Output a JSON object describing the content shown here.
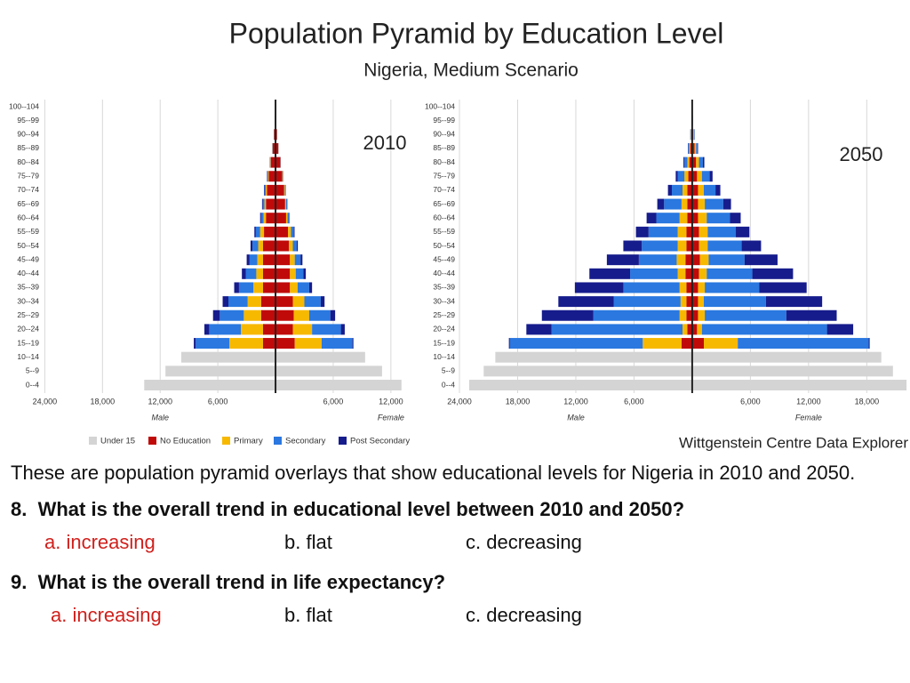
{
  "header": {
    "title": "Population Pyramid by Education Level",
    "subtitle": "Nigeria, Medium Scenario"
  },
  "source": "Wittgenstein Centre Data Explorer",
  "chart_data": [
    {
      "type": "pyramid",
      "label": "2010",
      "categories": [
        "0--4",
        "5--9",
        "10--14",
        "15--19",
        "20--24",
        "25--29",
        "30--34",
        "35--39",
        "40--44",
        "45--49",
        "50--54",
        "55--59",
        "60--64",
        "65--69",
        "70--74",
        "75--79",
        "80--84",
        "85--89",
        "90--94",
        "95--99",
        "100--104"
      ],
      "xlim": [
        -24500,
        13400
      ],
      "xticks": [
        {
          "value": -24000,
          "label": "24,000"
        },
        {
          "value": -18000,
          "label": "18,000"
        },
        {
          "value": -12000,
          "label": "12,000"
        },
        {
          "value": -6000,
          "label": "6,000"
        },
        {
          "value": 6000,
          "label": "6,000"
        },
        {
          "value": 12000,
          "label": "12,000"
        }
      ],
      "grid": true,
      "male_label": "Male",
      "female_label": "Female",
      "series": [
        {
          "name": "Under 15",
          "color": "#d4d4d4",
          "male": [
            13660,
            11450,
            9800,
            0,
            0,
            0,
            0,
            0,
            0,
            0,
            0,
            0,
            0,
            0,
            0,
            0,
            0,
            0,
            0,
            0,
            0
          ],
          "female": [
            13100,
            11080,
            9320,
            0,
            0,
            0,
            0,
            0,
            0,
            0,
            0,
            0,
            0,
            0,
            0,
            0,
            0,
            0,
            0,
            0,
            0
          ]
        },
        {
          "name": "No Education",
          "color": "#c00a0a",
          "male": [
            0,
            0,
            0,
            1300,
            1300,
            1500,
            1500,
            1300,
            1300,
            1300,
            1300,
            1200,
            1000,
            1000,
            900,
            700,
            500,
            300,
            160,
            70,
            20
          ],
          "female": [
            0,
            0,
            0,
            2000,
            1800,
            1900,
            1800,
            1500,
            1500,
            1500,
            1400,
            1300,
            1100,
            1000,
            900,
            700,
            500,
            300,
            150,
            70,
            20
          ]
        },
        {
          "name": "Primary",
          "color": "#f7b800",
          "male": [
            0,
            0,
            0,
            3500,
            2300,
            1800,
            1400,
            1000,
            700,
            600,
            500,
            400,
            250,
            150,
            120,
            80,
            40,
            20,
            10,
            5,
            0
          ],
          "female": [
            0,
            0,
            0,
            2800,
            2000,
            1600,
            1200,
            800,
            600,
            500,
            400,
            300,
            150,
            100,
            80,
            40,
            20,
            10,
            5,
            0,
            0
          ]
        },
        {
          "name": "Secondary",
          "color": "#2a78e0",
          "male": [
            0,
            0,
            0,
            3500,
            3300,
            2500,
            2000,
            1500,
            1100,
            800,
            600,
            450,
            250,
            180,
            130,
            90,
            40,
            20,
            10,
            5,
            0
          ],
          "female": [
            0,
            0,
            0,
            3200,
            3000,
            2200,
            1700,
            1200,
            800,
            600,
            400,
            300,
            150,
            100,
            70,
            40,
            20,
            10,
            5,
            0,
            0
          ]
        },
        {
          "name": "Post Secondary",
          "color": "#161c8c",
          "male": [
            0,
            0,
            0,
            200,
            500,
            700,
            600,
            500,
            400,
            300,
            200,
            150,
            100,
            70,
            50,
            30,
            20,
            10,
            0,
            0,
            0
          ],
          "female": [
            0,
            0,
            0,
            100,
            400,
            500,
            400,
            300,
            250,
            200,
            120,
            80,
            50,
            30,
            20,
            10,
            10,
            0,
            0,
            0,
            0
          ]
        }
      ]
    },
    {
      "type": "pyramid",
      "label": "2050",
      "categories": [
        "0--4",
        "5--9",
        "10--14",
        "15--19",
        "20--24",
        "25--29",
        "30--34",
        "35--39",
        "40--44",
        "45--49",
        "50--54",
        "55--59",
        "60--64",
        "65--69",
        "70--74",
        "75--79",
        "80--84",
        "85--89",
        "90--94",
        "95--99",
        "100--104"
      ],
      "xlim": [
        -24000,
        22000
      ],
      "xticks": [
        {
          "value": -24000,
          "label": "24,000"
        },
        {
          "value": -18000,
          "label": "18,000"
        },
        {
          "value": -12000,
          "label": "12,000"
        },
        {
          "value": -6000,
          "label": "6,000"
        },
        {
          "value": 6000,
          "label": "6,000"
        },
        {
          "value": 12000,
          "label": "12,000"
        },
        {
          "value": 18000,
          "label": "18,000"
        }
      ],
      "grid": true,
      "male_label": "Male",
      "female_label": "Female",
      "series": [
        {
          "color": "#d4d4d4",
          "male": [
            23000,
            21500,
            20300,
            0,
            0,
            0,
            0,
            0,
            0,
            0,
            0,
            0,
            0,
            0,
            0,
            0,
            0,
            0,
            0,
            0,
            0
          ],
          "female": [
            22100,
            20700,
            19500,
            0,
            0,
            0,
            0,
            0,
            0,
            0,
            0,
            0,
            0,
            0,
            0,
            0,
            0,
            0,
            0,
            0,
            0
          ]
        },
        {
          "color": "#c00a0a",
          "male": [
            0,
            0,
            0,
            1100,
            500,
            600,
            600,
            600,
            700,
            700,
            600,
            600,
            500,
            500,
            500,
            400,
            300,
            200,
            100,
            30,
            10
          ],
          "female": [
            0,
            0,
            0,
            1200,
            500,
            600,
            600,
            600,
            700,
            800,
            700,
            700,
            600,
            600,
            600,
            500,
            400,
            250,
            120,
            40,
            10
          ]
        },
        {
          "color": "#f7b800",
          "male": [
            0,
            0,
            0,
            4000,
            500,
            700,
            600,
            700,
            800,
            900,
            900,
            900,
            800,
            600,
            500,
            400,
            200,
            100,
            40,
            20,
            0
          ],
          "female": [
            0,
            0,
            0,
            3500,
            500,
            700,
            600,
            700,
            800,
            900,
            900,
            900,
            900,
            700,
            600,
            500,
            300,
            150,
            60,
            15,
            5
          ]
        },
        {
          "color": "#2a78e0",
          "male": [
            0,
            0,
            0,
            13700,
            13500,
            8900,
            6900,
            5800,
            4900,
            3900,
            3700,
            3000,
            2400,
            1800,
            1100,
            700,
            300,
            120,
            50,
            10,
            0
          ],
          "female": [
            0,
            0,
            0,
            13500,
            12900,
            8400,
            6400,
            5600,
            4700,
            3700,
            3500,
            2900,
            2400,
            1900,
            1200,
            800,
            400,
            150,
            50,
            10,
            0
          ]
        },
        {
          "color": "#161c8c",
          "male": [
            0,
            0,
            0,
            100,
            2600,
            5300,
            5700,
            5000,
            4200,
            3300,
            1900,
            1300,
            1000,
            700,
            400,
            200,
            100,
            30,
            10,
            0,
            0
          ],
          "female": [
            0,
            0,
            0,
            100,
            2700,
            5200,
            5800,
            4900,
            4200,
            3400,
            2000,
            1400,
            1100,
            800,
            500,
            300,
            150,
            50,
            20,
            5,
            0
          ]
        }
      ]
    }
  ],
  "slide": {
    "intro": "These are population pyramid overlays that show educational levels for Nigeria in 2010 and 2050.",
    "questions": [
      {
        "number": "8.",
        "text": "What is the overall trend in educational level between 2010 and 2050?",
        "options": [
          "a. increasing",
          "b. flat",
          "c. decreasing"
        ]
      },
      {
        "number": "9.",
        "text": "What is the overall trend in life expectancy?",
        "options": [
          "a. increasing",
          "b. flat",
          "c. decreasing"
        ]
      }
    ]
  }
}
